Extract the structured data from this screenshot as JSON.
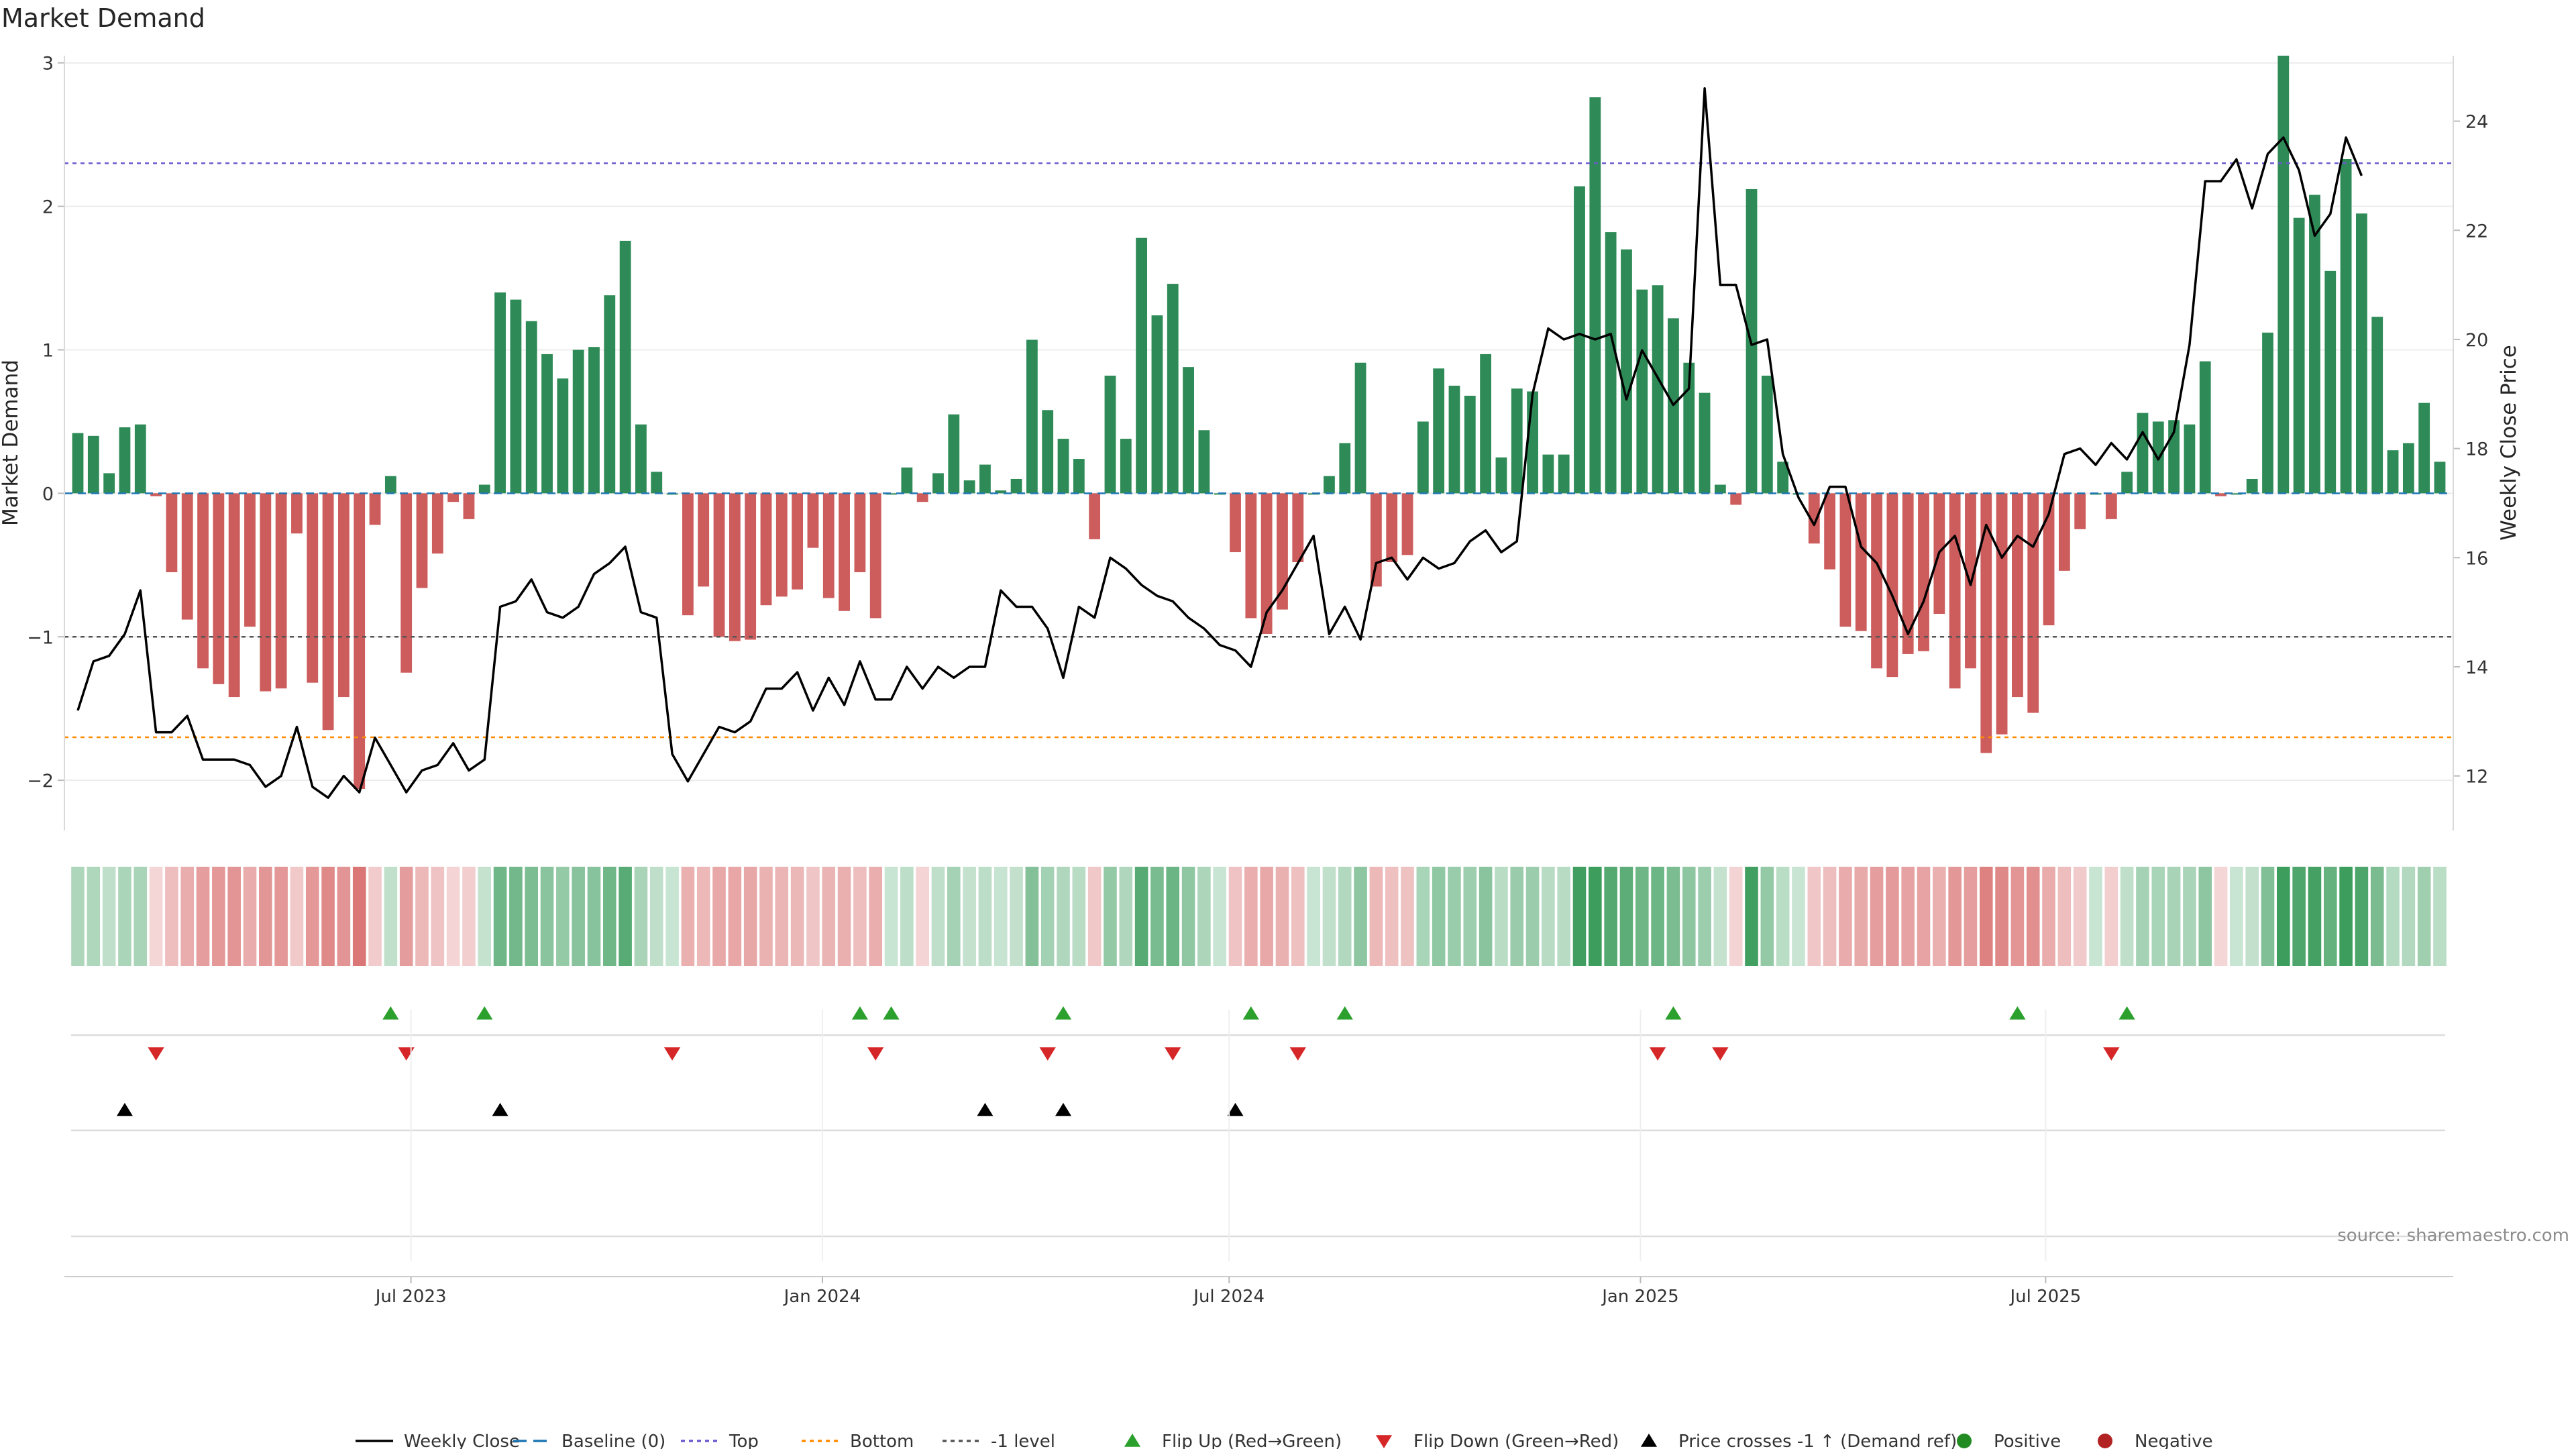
{
  "chart_data": [
    {
      "type": "bar",
      "title": "Market Demand",
      "ylabel": "Market Demand",
      "ylabel_right": "Weekly Close Price",
      "ylim": [
        -2.35,
        3.05
      ],
      "y2lim": [
        11.0,
        25.2
      ],
      "yticks": [
        -2,
        -1,
        0,
        1,
        2,
        3
      ],
      "yticks_labels": [
        "−2",
        "−1",
        "0",
        "1",
        "2",
        "3"
      ],
      "y2ticks": [
        12,
        14,
        16,
        18,
        20,
        22,
        24
      ],
      "y2ticks_labels": [
        "12",
        "14",
        "16",
        "18",
        "20",
        "22",
        "24"
      ],
      "x_start": "2023-03-05",
      "x_step_days": 7,
      "xticks": [
        {
          "label": "Jul 2023",
          "week_index": 21.3
        },
        {
          "label": "Jan 2024",
          "week_index": 47.6
        },
        {
          "label": "Jul 2024",
          "week_index": 73.6
        },
        {
          "label": "Jan 2025",
          "week_index": 99.9
        },
        {
          "label": "Jul 2025",
          "week_index": 125.8
        }
      ],
      "reference_lines": {
        "baseline": 0,
        "top": 2.3,
        "bottom": -1.7,
        "minus_one": -1
      },
      "series": [
        {
          "name": "Market Demand",
          "values": [
            0.42,
            0.4,
            0.14,
            0.46,
            0.48,
            -0.02,
            -0.55,
            -0.88,
            -1.22,
            -1.33,
            -1.42,
            -0.93,
            -1.38,
            -1.36,
            -0.28,
            -1.32,
            -1.65,
            -1.42,
            -2.06,
            -0.22,
            0.12,
            -1.25,
            -0.66,
            -0.42,
            -0.06,
            -0.18,
            0.06,
            1.4,
            1.35,
            1.2,
            0.97,
            0.8,
            1.0,
            1.02,
            1.38,
            1.76,
            0.48,
            0.15,
            0.0,
            -0.85,
            -0.65,
            -1.0,
            -1.03,
            -1.02,
            -0.78,
            -0.72,
            -0.67,
            -0.38,
            -0.73,
            -0.82,
            -0.55,
            -0.87,
            0.0,
            0.18,
            -0.06,
            0.14,
            0.55,
            0.09,
            0.2,
            0.02,
            0.1,
            1.07,
            0.58,
            0.38,
            0.24,
            -0.32,
            0.82,
            0.38,
            1.78,
            1.24,
            1.46,
            0.88,
            0.44,
            0.0,
            -0.41,
            -0.87,
            -0.98,
            -0.81,
            -0.48,
            0.0,
            0.12,
            0.35,
            0.91,
            -0.65,
            -0.48,
            -0.43,
            0.5,
            0.87,
            0.75,
            0.68,
            0.97,
            0.25,
            0.73,
            0.71,
            0.27,
            0.27,
            2.14,
            2.76,
            1.82,
            1.7,
            1.42,
            1.45,
            1.22,
            0.91,
            0.7,
            0.06,
            -0.08,
            2.12,
            0.82,
            0.22,
            0.0,
            -0.35,
            -0.53,
            -0.93,
            -0.96,
            -1.22,
            -1.28,
            -1.12,
            -1.1,
            -0.84,
            -1.36,
            -1.22,
            -1.81,
            -1.68,
            -1.42,
            -1.53,
            -0.92,
            -0.54,
            -0.25,
            0.0,
            -0.18,
            0.15,
            0.56,
            0.5,
            0.51,
            0.48,
            0.92,
            -0.02,
            0.0,
            0.1,
            1.12,
            3.05,
            1.92,
            2.08,
            1.55,
            2.33,
            1.95,
            1.23,
            0.3,
            0.35,
            0.63,
            0.22
          ]
        },
        {
          "name": "Weekly Close",
          "values": [
            13.2,
            14.1,
            14.2,
            14.6,
            15.4,
            12.8,
            12.8,
            13.1,
            12.3,
            12.3,
            12.3,
            12.2,
            11.8,
            12.0,
            12.9,
            11.8,
            11.6,
            12.0,
            11.7,
            12.7,
            12.2,
            11.7,
            12.1,
            12.2,
            12.6,
            12.1,
            12.3,
            15.1,
            15.2,
            15.6,
            15.0,
            14.9,
            15.1,
            15.7,
            15.9,
            16.2,
            15.0,
            14.9,
            12.4,
            11.9,
            12.4,
            12.9,
            12.8,
            13.0,
            13.6,
            13.6,
            13.9,
            13.2,
            13.8,
            13.3,
            14.1,
            13.4,
            13.4,
            14.0,
            13.6,
            14.0,
            13.8,
            14.0,
            14.0,
            15.4,
            15.1,
            15.1,
            14.7,
            13.8,
            15.1,
            14.9,
            16.0,
            15.8,
            15.5,
            15.3,
            15.2,
            14.9,
            14.7,
            14.4,
            14.3,
            14.0,
            15.0,
            15.4,
            15.9,
            16.4,
            14.6,
            15.1,
            14.5,
            15.9,
            16.0,
            15.6,
            16.0,
            15.8,
            15.9,
            16.3,
            16.5,
            16.1,
            16.3,
            19.0,
            20.2,
            20.0,
            20.1,
            20.0,
            20.1,
            18.9,
            19.8,
            19.3,
            18.8,
            19.1,
            24.6,
            21.0,
            21.0,
            19.9,
            20.0,
            17.9,
            17.1,
            16.6,
            17.3,
            17.3,
            16.2,
            15.9,
            15.3,
            14.6,
            15.2,
            16.1,
            16.4,
            15.5,
            16.6,
            16.0,
            16.4,
            16.2,
            16.8,
            17.9,
            18.0,
            17.7,
            18.1,
            17.8,
            18.3,
            17.8,
            18.3,
            19.9,
            22.9,
            22.9,
            23.3,
            22.4,
            23.4,
            23.7,
            23.1,
            21.9,
            22.3,
            23.7,
            23.0
          ]
        }
      ],
      "legend_position": "bottom"
    },
    {
      "type": "heatmap",
      "name": "Demand strength strip",
      "note": "Weekly cells coloured green (positive) or red (negative), intensity by magnitude of Market Demand"
    },
    {
      "type": "scatter",
      "name": "Event markers",
      "series": [
        {
          "name": "Flip Up (Red→Green)",
          "row": "flip_up",
          "week_index": [
            20,
            26,
            50,
            52,
            63,
            75,
            81,
            102,
            124,
            131
          ]
        },
        {
          "name": "Flip Down (Green→Red)",
          "row": "flip_down",
          "week_index": [
            5,
            21,
            38,
            51,
            62,
            70,
            78,
            101,
            105,
            130
          ]
        },
        {
          "name": "Price crosses -1 ↑ (Demand ref)",
          "row": "price_cross",
          "week_index": [
            3,
            27,
            58,
            63,
            74
          ]
        }
      ]
    }
  ],
  "legend": {
    "weekly_close": "Weekly Close",
    "baseline": "Baseline (0)",
    "top": "Top",
    "bottom": "Bottom",
    "minus_one": "-1 level",
    "flip_up": "Flip Up (Red→Green)",
    "flip_down": "Flip Down (Green→Red)",
    "price_cross": "Price crosses -1 ↑ (Demand ref)",
    "positive": "Positive",
    "negative": "Negative"
  },
  "source_note": "source: sharemaestro.com",
  "colors": {
    "positive_bar": "#2e8b57",
    "negative_bar": "#cd5c5c",
    "close_line": "#000000",
    "top_line": "#6a5acd",
    "bottom_line": "#ff8c00",
    "minus_one_line": "#555555",
    "baseline_line": "#1f77b4",
    "flip_up": "#2ca02c",
    "flip_down": "#d62728",
    "price_cross": "#000000",
    "legend_positive": "#228b22",
    "legend_negative": "#b22222"
  }
}
